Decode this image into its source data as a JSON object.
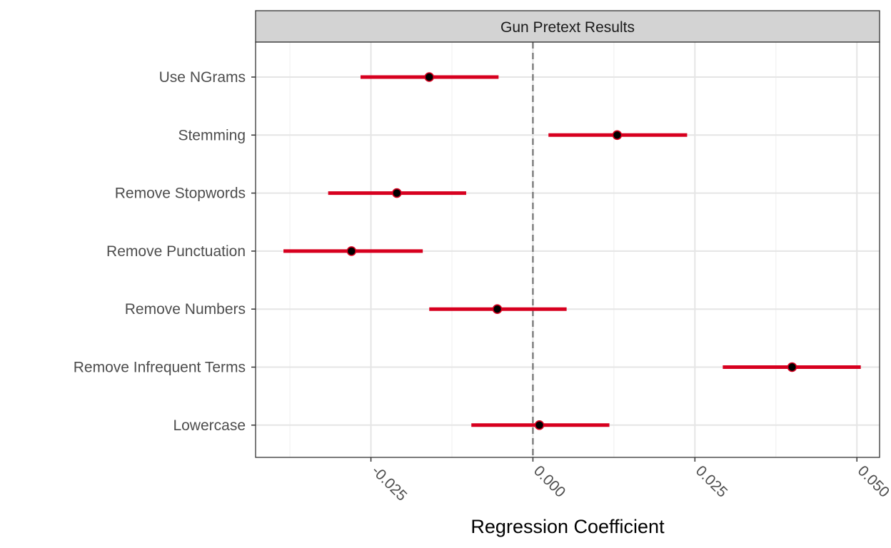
{
  "chart_data": {
    "type": "dot-and-whisker",
    "title": "Gun Pretext Results",
    "strip_label": "Gun Pretext Results",
    "xlabel": "Regression Coefficient",
    "ylabel": "",
    "xlim": [
      -0.0428,
      0.0535
    ],
    "x_ticks": [
      -0.025,
      0.0,
      0.025,
      0.05
    ],
    "x_tick_labels": [
      "-0.025",
      "0.000",
      "0.025",
      "0.050"
    ],
    "reference_line": 0.0,
    "categories": [
      "Use NGrams",
      "Stemming",
      "Remove Stopwords",
      "Remove Punctuation",
      "Remove Numbers",
      "Remove Infrequent Terms",
      "Lowercase"
    ],
    "estimates": [
      -0.016,
      0.013,
      -0.021,
      -0.028,
      -0.0055,
      0.04,
      0.001
    ],
    "ci_lower": [
      -0.0266,
      0.0024,
      -0.0316,
      -0.0385,
      -0.016,
      0.0293,
      -0.0095
    ],
    "ci_upper": [
      -0.0053,
      0.0238,
      -0.0103,
      -0.017,
      0.0052,
      0.0506,
      0.0118
    ],
    "colors": {
      "interval": "#d7001f",
      "point_fill": "#000000",
      "point_stroke": "#d7001f",
      "grid_major": "#e5e5e5",
      "grid_minor": "#f0f0f0",
      "strip_bg": "#d3d3d3",
      "panel_border": "#333333",
      "ref_line": "#707070"
    }
  }
}
